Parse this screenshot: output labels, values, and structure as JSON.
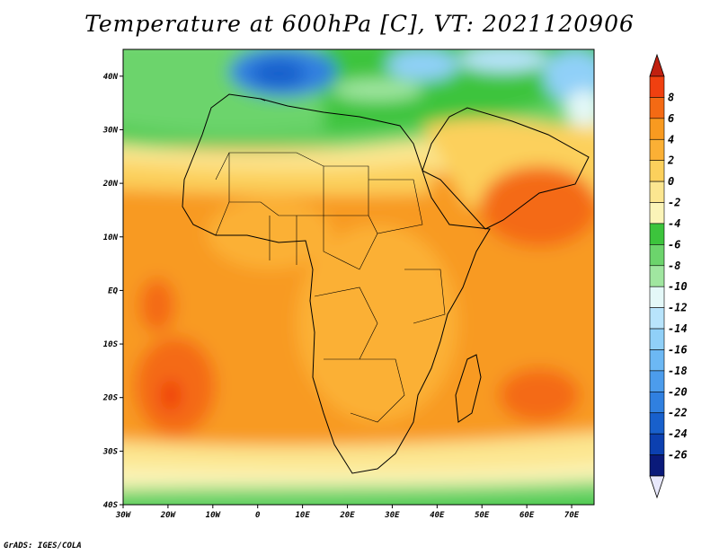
{
  "title": "Temperature at 600hPa [C], VT: 2021120906",
  "credit": "GrADS: IGES/COLA",
  "map": {
    "lat_range": [
      -40,
      45
    ],
    "lon_range": [
      -30,
      75
    ],
    "lat_labels": [
      "40N",
      "30N",
      "20N",
      "10N",
      "EQ",
      "10S",
      "20S",
      "30S",
      "40S"
    ],
    "lon_labels": [
      "30W",
      "20W",
      "10W",
      "0",
      "10E",
      "20E",
      "30E",
      "40E",
      "50E",
      "60E",
      "70E"
    ]
  },
  "colorbar": {
    "labels": [
      "8",
      "6",
      "4",
      "2",
      "0",
      "-2",
      "-4",
      "-6",
      "-8",
      "-10",
      "-12",
      "-14",
      "-16",
      "-18",
      "-20",
      "-22",
      "-24",
      "-26"
    ],
    "colors": [
      "#f04010",
      "#f46a14",
      "#f89a20",
      "#fbb035",
      "#fcd05c",
      "#fce690",
      "#fbf4b8",
      "#3cc43c",
      "#6cd46c",
      "#a0e6a0",
      "#e4f8f8",
      "#b8e4fc",
      "#90d0f8",
      "#6cb8f4",
      "#4c9cec",
      "#3080e0",
      "#1860cc",
      "#0c40b0",
      "#0a1a7a"
    ],
    "top_color": "#c02010",
    "bottom_color": "#e8e8fc"
  }
}
